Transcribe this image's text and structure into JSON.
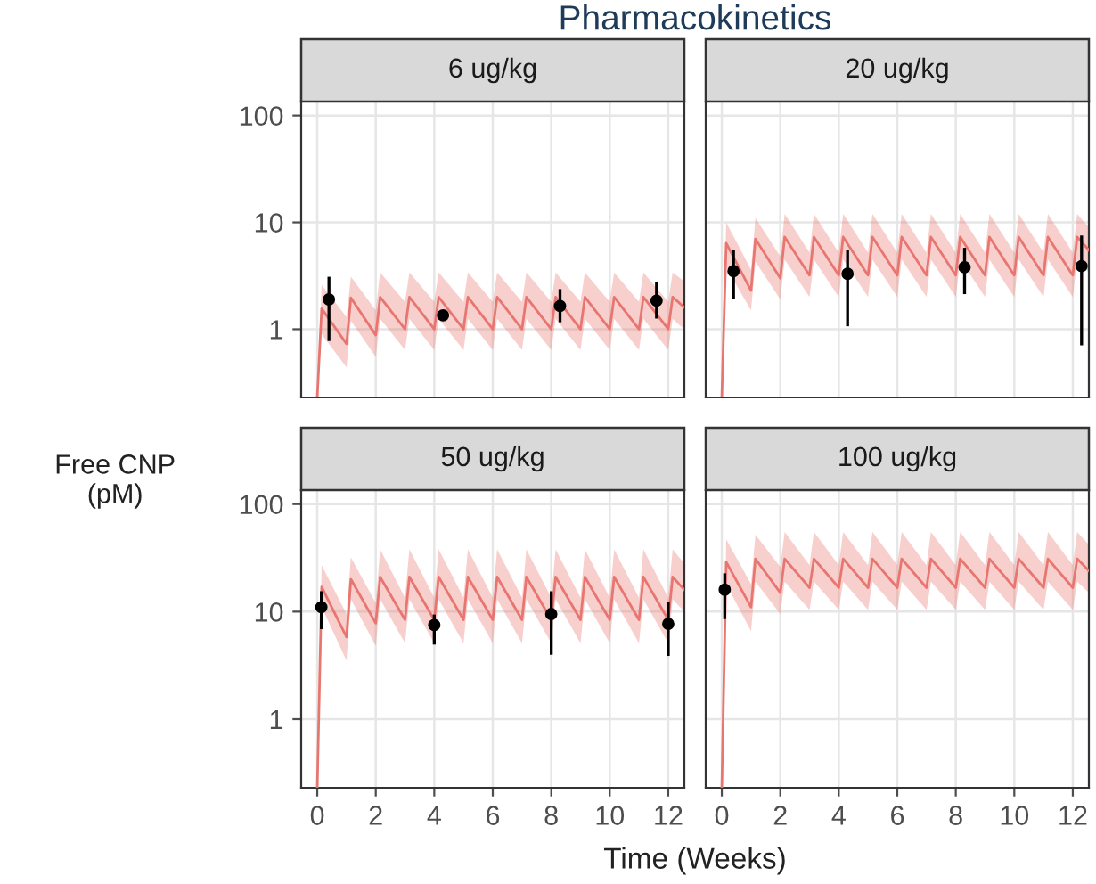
{
  "chart_data": [
    {
      "type": "line",
      "title": "6 ug/kg",
      "ylabel": "Free CNP\n(pM)",
      "annotations": [
        "Pharmacokinetics"
      ],
      "log": "y",
      "xlim": [
        -0.55,
        12.55
      ],
      "xticks": [
        0,
        2,
        4,
        6,
        8,
        10,
        12
      ],
      "ylim": [
        0.23,
        135
      ],
      "yticks": [
        1,
        10,
        100
      ],
      "grid": true,
      "tick_labels": "y",
      "series": [
        {
          "color": "#e8756f",
          "x": [
            0,
            0.15,
            1,
            1.15,
            2,
            2.15,
            3,
            3.15,
            4,
            4.15,
            5,
            5.15,
            6,
            6.15,
            7,
            7.15,
            8,
            8.15,
            9,
            9.15,
            10,
            10.15,
            11,
            11.15,
            12,
            12.15,
            12.55
          ],
          "values": [
            0.23,
            1.56,
            0.73,
            1.97,
            0.88,
            2.0,
            1.0,
            2.0,
            1.0,
            2.0,
            1.0,
            2.0,
            1.0,
            2.0,
            1.0,
            2.0,
            1.0,
            2.0,
            1.0,
            2.0,
            1.0,
            2.0,
            1.0,
            2.0,
            1.0,
            2.0,
            1.6
          ],
          "lower": [
            0.23,
            0.9,
            0.44,
            1.2,
            0.55,
            1.25,
            0.64,
            1.25,
            0.64,
            1.25,
            0.64,
            1.25,
            0.64,
            1.25,
            0.64,
            1.25,
            0.64,
            1.25,
            0.64,
            1.25,
            0.64,
            1.25,
            0.64,
            1.25,
            0.64,
            1.25,
            1.0
          ],
          "upper": [
            0.23,
            2.6,
            1.3,
            3.1,
            1.5,
            3.4,
            1.8,
            3.4,
            1.8,
            3.4,
            1.8,
            3.4,
            1.8,
            3.4,
            1.8,
            3.4,
            1.8,
            3.4,
            1.8,
            3.4,
            1.8,
            3.4,
            1.8,
            3.4,
            1.8,
            3.4,
            2.8
          ]
        },
        {
          "type": "scatter",
          "marker": "circle",
          "color": "#000000",
          "x": [
            0.4,
            4.3,
            8.3,
            11.6
          ],
          "values": [
            1.9,
            1.35,
            1.65,
            1.85
          ],
          "errors": [
            [
              0.8,
              3.0
            ],
            null,
            [
              1.2,
              2.3
            ],
            [
              1.3,
              2.7
            ]
          ]
        }
      ]
    },
    {
      "type": "line",
      "title": "20 ug/kg",
      "log": "y",
      "xlim": [
        -0.55,
        12.55
      ],
      "xticks": [
        0,
        2,
        4,
        6,
        8,
        10,
        12
      ],
      "ylim": [
        0.23,
        135
      ],
      "yticks": [
        1,
        10,
        100
      ],
      "grid": true,
      "tick_labels": false,
      "series": [
        {
          "color": "#e8756f",
          "x": [
            0,
            0.15,
            1,
            1.15,
            2,
            2.15,
            3,
            3.15,
            4,
            4.15,
            5,
            5.15,
            6,
            6.15,
            7,
            7.15,
            8,
            8.15,
            9,
            9.15,
            10,
            10.15,
            11,
            11.15,
            12,
            12.15,
            12.55
          ],
          "values": [
            0.23,
            6.4,
            2.3,
            7.0,
            3.0,
            7.3,
            3.2,
            7.3,
            3.2,
            7.3,
            3.2,
            7.3,
            3.2,
            7.3,
            3.2,
            7.3,
            3.2,
            7.3,
            3.2,
            7.3,
            3.2,
            7.3,
            3.2,
            7.3,
            3.2,
            7.3,
            5.5
          ],
          "lower": [
            0.23,
            3.8,
            1.5,
            4.3,
            1.9,
            4.5,
            2.0,
            4.5,
            2.0,
            4.5,
            2.0,
            4.5,
            2.0,
            4.5,
            2.0,
            4.5,
            2.0,
            4.5,
            2.0,
            4.5,
            2.0,
            4.5,
            2.0,
            4.5,
            2.0,
            4.5,
            3.4
          ],
          "upper": [
            0.23,
            10,
            3.6,
            11,
            4.8,
            12,
            5.2,
            12,
            5.2,
            12,
            5.2,
            12,
            5.2,
            12,
            5.2,
            12,
            5.2,
            12,
            5.2,
            12,
            5.2,
            12,
            5.2,
            12,
            5.2,
            12,
            9
          ]
        },
        {
          "type": "scatter",
          "marker": "circle",
          "color": "#000000",
          "x": [
            0.4,
            4.3,
            8.3,
            12.3
          ],
          "values": [
            3.5,
            3.3,
            3.8,
            3.9
          ],
          "errors": [
            [
              2.0,
              5.3
            ],
            [
              1.1,
              5.3
            ],
            [
              2.2,
              5.6
            ],
            [
              0.73,
              7.3
            ]
          ]
        }
      ]
    },
    {
      "type": "line",
      "title": "50 ug/kg",
      "xlabel": "Time (Weeks)",
      "log": "y",
      "xlim": [
        -0.55,
        12.55
      ],
      "xticks": [
        0,
        2,
        4,
        6,
        8,
        10,
        12
      ],
      "ylim": [
        0.23,
        135
      ],
      "yticks": [
        1,
        10,
        100
      ],
      "grid": true,
      "series": [
        {
          "color": "#e8756f",
          "x": [
            0,
            0.15,
            1,
            1.15,
            2,
            2.15,
            3,
            3.15,
            4,
            4.15,
            5,
            5.15,
            6,
            6.15,
            7,
            7.15,
            8,
            8.15,
            9,
            9.15,
            10,
            10.15,
            11,
            11.15,
            12,
            12.15,
            12.55
          ],
          "values": [
            0.23,
            17,
            5.8,
            20,
            7.8,
            21,
            8.4,
            21,
            8.4,
            21,
            8.4,
            21,
            8.4,
            21,
            8.4,
            21,
            8.4,
            21,
            8.4,
            21,
            8.4,
            21,
            8.4,
            21,
            8.4,
            21,
            16
          ],
          "lower": [
            0.23,
            11,
            3.5,
            13,
            4.8,
            13,
            5.1,
            13,
            5.1,
            13,
            5.1,
            13,
            5.1,
            13,
            5.1,
            13,
            5.1,
            13,
            5.1,
            13,
            5.1,
            13,
            5.1,
            13,
            5.1,
            13,
            10
          ],
          "upper": [
            0.23,
            27,
            9.5,
            32,
            12,
            38,
            13.5,
            38,
            13.5,
            38,
            13.5,
            38,
            13.5,
            38,
            13.5,
            38,
            13.5,
            38,
            13.5,
            38,
            13.5,
            38,
            13.5,
            38,
            13.5,
            38,
            28
          ]
        },
        {
          "type": "scatter",
          "marker": "circle",
          "color": "#000000",
          "x": [
            0.14,
            4.0,
            8.0,
            12.0
          ],
          "values": [
            11,
            7.5,
            9.5,
            7.7
          ],
          "errors": [
            [
              7.1,
              15
            ],
            [
              5.1,
              9.1
            ],
            [
              4.1,
              15
            ],
            [
              4.0,
              12
            ]
          ]
        }
      ]
    },
    {
      "type": "line",
      "title": "100 ug/kg",
      "log": "y",
      "xlim": [
        -0.55,
        12.55
      ],
      "xticks": [
        0,
        2,
        4,
        6,
        8,
        10,
        12
      ],
      "ylim": [
        0.23,
        135
      ],
      "yticks": [
        1,
        10,
        100
      ],
      "grid": true,
      "tick_labels": "x",
      "series": [
        {
          "color": "#e8756f",
          "x": [
            0,
            0.15,
            1,
            1.15,
            2,
            2.15,
            3,
            3.15,
            4,
            4.15,
            5,
            5.15,
            6,
            6.15,
            7,
            7.15,
            8,
            8.15,
            9,
            9.15,
            10,
            10.15,
            11,
            11.15,
            12,
            12.15,
            12.55
          ],
          "values": [
            0.23,
            29,
            11,
            31,
            15,
            31,
            16.7,
            31,
            16.7,
            31,
            16.7,
            31,
            16.7,
            31,
            16.7,
            31,
            16.7,
            31,
            16.7,
            31,
            16.7,
            31,
            16.7,
            31,
            16.7,
            31,
            24
          ],
          "lower": [
            0.23,
            18,
            6.6,
            19,
            9.5,
            19,
            10.4,
            19,
            10.4,
            19,
            10.4,
            19,
            10.4,
            19,
            10.4,
            19,
            10.4,
            19,
            10.4,
            19,
            10.4,
            19,
            10.4,
            19,
            10.4,
            19,
            15
          ],
          "upper": [
            0.23,
            47,
            18,
            52,
            26,
            55,
            27,
            55,
            27,
            55,
            27,
            55,
            27,
            55,
            27,
            55,
            27,
            55,
            27,
            55,
            27,
            55,
            27,
            55,
            27,
            55,
            42
          ]
        },
        {
          "type": "scatter",
          "marker": "circle",
          "color": "#000000",
          "x": [
            0.1
          ],
          "values": [
            16
          ],
          "errors": [
            [
              8.8,
              22
            ]
          ]
        }
      ]
    }
  ]
}
